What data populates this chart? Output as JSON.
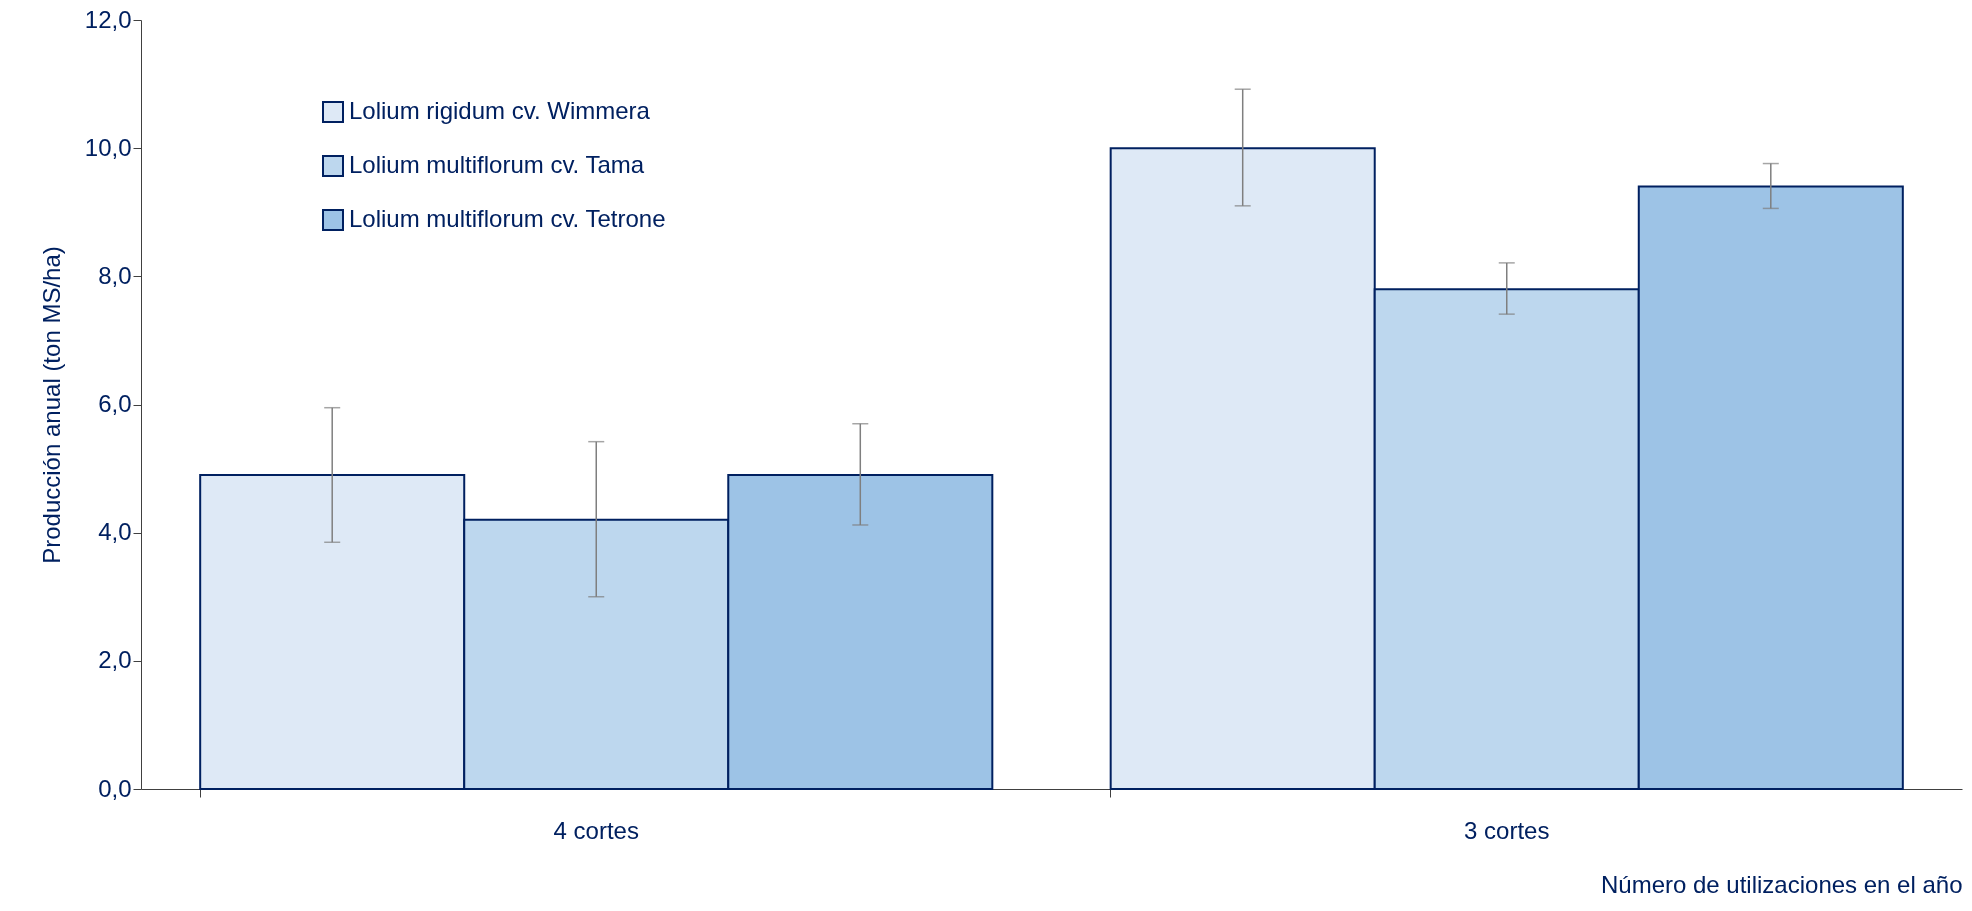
{
  "chart_data": {
    "type": "bar",
    "ylabel": "Producción anual (ton MS/ha)",
    "xlabel": "Número de utilizaciones en el año",
    "categories": [
      "4 cortes",
      "3 cortes"
    ],
    "series": [
      {
        "name": "Lolium rigidum cv. Wimmera",
        "color": "#dee9f6",
        "values": [
          4.9,
          10.0
        ],
        "errors": [
          [
            3.85,
            5.95
          ],
          [
            9.1,
            10.92
          ]
        ]
      },
      {
        "name": "Lolium multiflorum cv. Tama",
        "color": "#bdd7ee",
        "values": [
          4.2,
          7.8
        ],
        "errors": [
          [
            3.0,
            5.42
          ],
          [
            7.41,
            8.21
          ]
        ]
      },
      {
        "name": "Lolium multiflorum cv. Tetrone",
        "color": "#9dc3e6",
        "values": [
          4.9,
          9.4
        ],
        "errors": [
          [
            4.12,
            5.7
          ],
          [
            9.06,
            9.76
          ]
        ]
      }
    ],
    "ylim": [
      0,
      12
    ],
    "yticks": [
      {
        "value": 0,
        "label": "0,0"
      },
      {
        "value": 2,
        "label": "2,0"
      },
      {
        "value": 4,
        "label": "4,0"
      },
      {
        "value": 6,
        "label": "6,0"
      },
      {
        "value": 8,
        "label": "8,0"
      },
      {
        "value": 10,
        "label": "10,0"
      },
      {
        "value": 12,
        "label": "12,0"
      }
    ],
    "grid": false,
    "legend": "top left"
  }
}
